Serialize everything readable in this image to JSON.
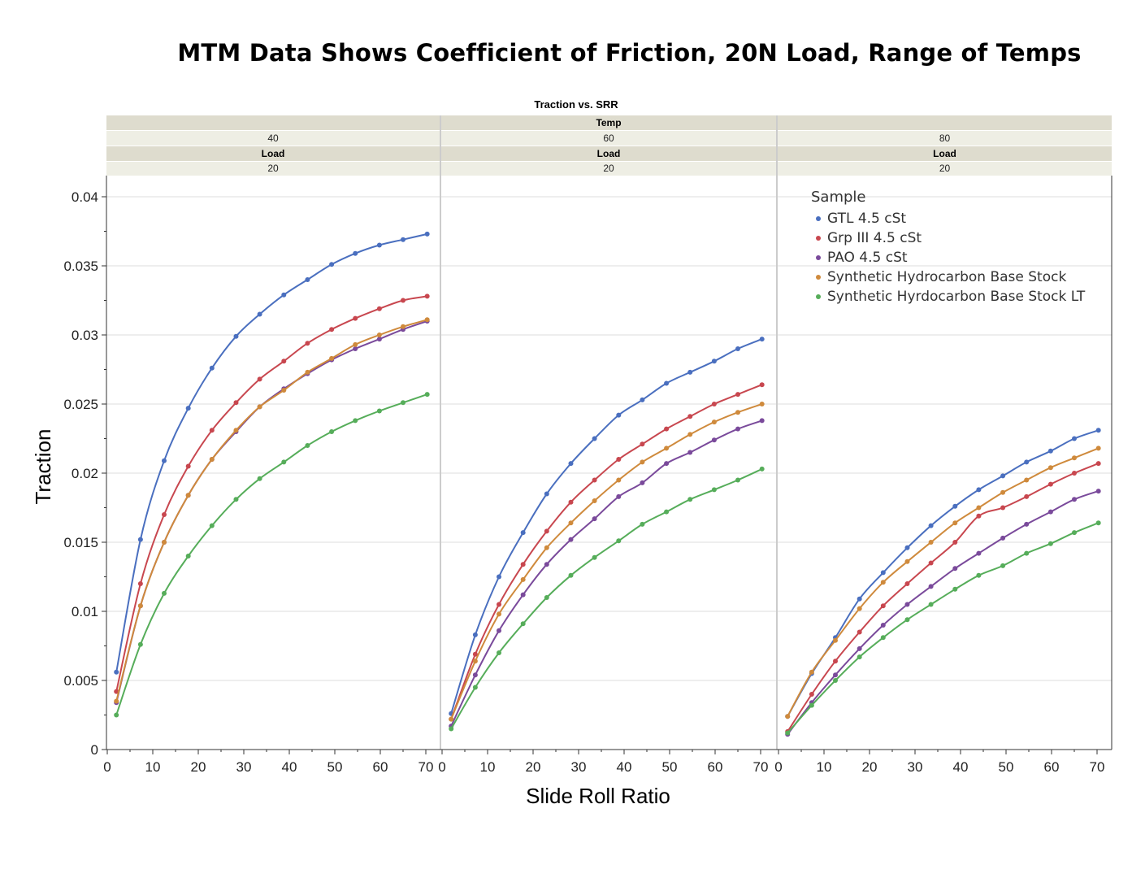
{
  "main_title": "MTM Data Shows Coefficient of Friction, 20N Load, Range of Temps",
  "colors": {
    "GTL 4.5 cSt": "#4a6fbf",
    "Grp III 4.5 cSt": "#c8474f",
    "PAO 4.5 cSt": "#7a4a9b",
    "Synthetic Hydrocarbon Base Stock": "#cf8a3c",
    "Synthetic Hyrdocarbon Base Stock LT": "#56ad5a",
    "header_band": "#dedcce",
    "header_value_band": "#eeeee4",
    "gridline": "#dddddd"
  },
  "chart_data": {
    "type": "line",
    "title": "Traction vs. SRR",
    "xlabel": "Slide Roll Ratio",
    "ylabel": "Traction",
    "xlim": [
      0,
      72
    ],
    "ylim": [
      0,
      0.041
    ],
    "x_ticks": [
      "0",
      "10",
      "20",
      "30",
      "40",
      "50",
      "60",
      "70"
    ],
    "y_ticks": [
      "0",
      "0.005",
      "0.01",
      "0.015",
      "0.02",
      "0.025",
      "0.03",
      "0.035",
      "0.04"
    ],
    "grid": true,
    "header": {
      "group_label": "Temp",
      "sub_label": "Load"
    },
    "legend_title": "Sample",
    "legend_position": "top-right",
    "panels": [
      {
        "temp": "40",
        "load": "20",
        "series": [
          {
            "name": "GTL 4.5 cSt",
            "x": [
              2,
              7.3,
              12.5,
              17.8,
              23,
              28.3,
              33.5,
              38.8,
              44,
              49.3,
              54.5,
              59.8,
              65,
              70.3
            ],
            "values": [
              0.0056,
              0.0152,
              0.0209,
              0.0247,
              0.0276,
              0.0299,
              0.0315,
              0.0329,
              0.034,
              0.0351,
              0.0359,
              0.0365,
              0.0369,
              0.0373
            ]
          },
          {
            "name": "Grp III 4.5 cSt",
            "x": [
              2,
              7.3,
              12.5,
              17.8,
              23,
              28.3,
              33.5,
              38.8,
              44,
              49.3,
              54.5,
              59.8,
              65,
              70.3
            ],
            "values": [
              0.0042,
              0.012,
              0.017,
              0.0205,
              0.0231,
              0.0251,
              0.0268,
              0.0281,
              0.0294,
              0.0304,
              0.0312,
              0.0319,
              0.0325,
              0.0328
            ]
          },
          {
            "name": "PAO 4.5 cSt",
            "x": [
              2,
              7.3,
              12.5,
              17.8,
              23,
              28.3,
              33.5,
              38.8,
              44,
              49.3,
              54.5,
              59.8,
              65,
              70.3
            ],
            "values": [
              0.0034,
              0.0104,
              0.015,
              0.0184,
              0.021,
              0.023,
              0.0248,
              0.0261,
              0.0272,
              0.0282,
              0.029,
              0.0297,
              0.0304,
              0.031
            ]
          },
          {
            "name": "Synthetic Hydrocarbon Base Stock",
            "x": [
              2,
              7.3,
              12.5,
              17.8,
              23,
              28.3,
              33.5,
              38.8,
              44,
              49.3,
              54.5,
              59.8,
              65,
              70.3
            ],
            "values": [
              0.0035,
              0.0104,
              0.015,
              0.0184,
              0.021,
              0.0231,
              0.0248,
              0.026,
              0.0273,
              0.0283,
              0.0293,
              0.03,
              0.0306,
              0.0311
            ]
          },
          {
            "name": "Synthetic Hyrdocarbon Base Stock LT",
            "x": [
              2,
              7.3,
              12.5,
              17.8,
              23,
              28.3,
              33.5,
              38.8,
              44,
              49.3,
              54.5,
              59.8,
              65,
              70.3
            ],
            "values": [
              0.0025,
              0.0076,
              0.0113,
              0.014,
              0.0162,
              0.0181,
              0.0196,
              0.0208,
              0.022,
              0.023,
              0.0238,
              0.0245,
              0.0251,
              0.0257
            ]
          }
        ]
      },
      {
        "temp": "60",
        "load": "20",
        "series": [
          {
            "name": "GTL 4.5 cSt",
            "x": [
              2,
              7.3,
              12.5,
              17.8,
              23,
              28.3,
              33.5,
              38.8,
              44,
              49.3,
              54.5,
              59.8,
              65,
              70.3
            ],
            "values": [
              0.0026,
              0.0083,
              0.0125,
              0.0157,
              0.0185,
              0.0207,
              0.0225,
              0.0242,
              0.0253,
              0.0265,
              0.0273,
              0.0281,
              0.029,
              0.0297
            ]
          },
          {
            "name": "Grp III 4.5 cSt",
            "x": [
              2,
              7.3,
              12.5,
              17.8,
              23,
              28.3,
              33.5,
              38.8,
              44,
              49.3,
              54.5,
              59.8,
              65,
              70.3
            ],
            "values": [
              0.0022,
              0.0069,
              0.0105,
              0.0134,
              0.0158,
              0.0179,
              0.0195,
              0.021,
              0.0221,
              0.0232,
              0.0241,
              0.025,
              0.0257,
              0.0264
            ]
          },
          {
            "name": "PAO 4.5 cSt",
            "x": [
              2,
              7.3,
              12.5,
              17.8,
              23,
              28.3,
              33.5,
              38.8,
              44,
              49.3,
              54.5,
              59.8,
              65,
              70.3
            ],
            "values": [
              0.0017,
              0.0054,
              0.0086,
              0.0112,
              0.0134,
              0.0152,
              0.0167,
              0.0183,
              0.0193,
              0.0207,
              0.0215,
              0.0224,
              0.0232,
              0.0238
            ]
          },
          {
            "name": "Synthetic Hydrocarbon Base Stock",
            "x": [
              2,
              7.3,
              12.5,
              17.8,
              23,
              28.3,
              33.5,
              38.8,
              44,
              49.3,
              54.5,
              59.8,
              65,
              70.3
            ],
            "values": [
              0.0022,
              0.0064,
              0.0098,
              0.0123,
              0.0146,
              0.0164,
              0.018,
              0.0195,
              0.0208,
              0.0218,
              0.0228,
              0.0237,
              0.0244,
              0.025
            ]
          },
          {
            "name": "Synthetic Hyrdocarbon Base Stock LT",
            "x": [
              2,
              7.3,
              12.5,
              17.8,
              23,
              28.3,
              33.5,
              38.8,
              44,
              49.3,
              54.5,
              59.8,
              65,
              70.3
            ],
            "values": [
              0.0015,
              0.0045,
              0.007,
              0.0091,
              0.011,
              0.0126,
              0.0139,
              0.0151,
              0.0163,
              0.0172,
              0.0181,
              0.0188,
              0.0195,
              0.0203
            ]
          }
        ]
      },
      {
        "temp": "80",
        "load": "20",
        "series": [
          {
            "name": "GTL 4.5 cSt",
            "x": [
              2,
              7.3,
              12.5,
              17.8,
              23,
              28.3,
              33.5,
              38.8,
              44,
              49.3,
              54.5,
              59.8,
              65,
              70.3
            ],
            "values": [
              0.0024,
              0.0055,
              0.0081,
              0.0109,
              0.0128,
              0.0146,
              0.0162,
              0.0176,
              0.0188,
              0.0198,
              0.0208,
              0.0216,
              0.0225,
              0.0231
            ]
          },
          {
            "name": "Grp III 4.5 cSt",
            "x": [
              2,
              7.3,
              12.5,
              17.8,
              23,
              28.3,
              33.5,
              38.8,
              44,
              49.3,
              54.5,
              59.8,
              65,
              70.3
            ],
            "values": [
              0.0013,
              0.004,
              0.0064,
              0.0085,
              0.0104,
              0.012,
              0.0135,
              0.015,
              0.0169,
              0.0175,
              0.0183,
              0.0192,
              0.02,
              0.0207
            ]
          },
          {
            "name": "PAO 4.5 cSt",
            "x": [
              2,
              7.3,
              12.5,
              17.8,
              23,
              28.3,
              33.5,
              38.8,
              44,
              49.3,
              54.5,
              59.8,
              65,
              70.3
            ],
            "values": [
              0.0011,
              0.0034,
              0.0054,
              0.0073,
              0.009,
              0.0105,
              0.0118,
              0.0131,
              0.0142,
              0.0153,
              0.0163,
              0.0172,
              0.0181,
              0.0187
            ]
          },
          {
            "name": "Synthetic Hydrocarbon Base Stock",
            "x": [
              2,
              7.3,
              12.5,
              17.8,
              23,
              28.3,
              33.5,
              38.8,
              44,
              49.3,
              54.5,
              59.8,
              65,
              70.3
            ],
            "values": [
              0.0024,
              0.0056,
              0.0079,
              0.0102,
              0.0121,
              0.0136,
              0.015,
              0.0164,
              0.0175,
              0.0186,
              0.0195,
              0.0204,
              0.0211,
              0.0218
            ]
          },
          {
            "name": "Synthetic Hyrdocarbon Base Stock LT",
            "x": [
              2,
              7.3,
              12.5,
              17.8,
              23,
              28.3,
              33.5,
              38.8,
              44,
              49.3,
              54.5,
              59.8,
              65,
              70.3
            ],
            "values": [
              0.0012,
              0.0032,
              0.005,
              0.0067,
              0.0081,
              0.0094,
              0.0105,
              0.0116,
              0.0126,
              0.0133,
              0.0142,
              0.0149,
              0.0157,
              0.0164
            ]
          }
        ]
      }
    ]
  }
}
